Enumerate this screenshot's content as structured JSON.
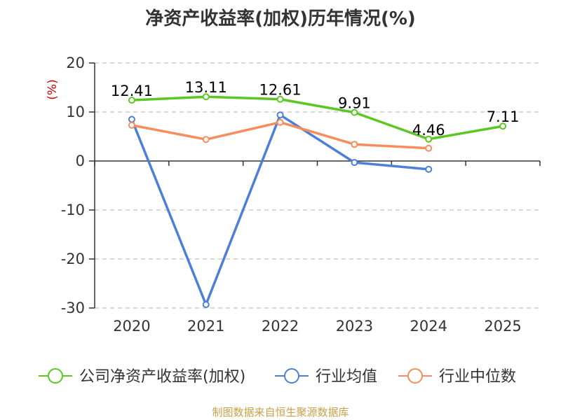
{
  "chart_data": {
    "type": "line",
    "title": "净资产收益率(加权)历年情况(%)",
    "ylabel": "(%)",
    "xlabel": "",
    "categories": [
      "2020",
      "2021",
      "2022",
      "2023",
      "2024",
      "2025"
    ],
    "ylim": [
      -30,
      20
    ],
    "yticks": [
      20,
      10,
      0,
      -10,
      -20,
      -30
    ],
    "grid": true,
    "legend_position": "bottom",
    "series": [
      {
        "name": "公司净资产收益率(加权)",
        "color": "#5cc623",
        "values": [
          12.41,
          13.11,
          12.61,
          9.91,
          4.46,
          7.11
        ],
        "labels": [
          "12.41",
          "13.11",
          "12.61",
          "9.91",
          "4.46",
          "7.11"
        ]
      },
      {
        "name": "行业均值",
        "color": "#4d7fd8",
        "values": [
          8.5,
          -29.3,
          9.4,
          -0.3,
          -1.7,
          null
        ]
      },
      {
        "name": "行业中位数",
        "color": "#f78d5c",
        "values": [
          7.3,
          4.4,
          7.9,
          3.4,
          2.6,
          null
        ]
      }
    ],
    "source": "制图数据来自恒生聚源数据库",
    "colors": {
      "axis": "#333333",
      "grid": "#cccccc",
      "unit": "#cc0000",
      "source": "#c8a047"
    }
  }
}
